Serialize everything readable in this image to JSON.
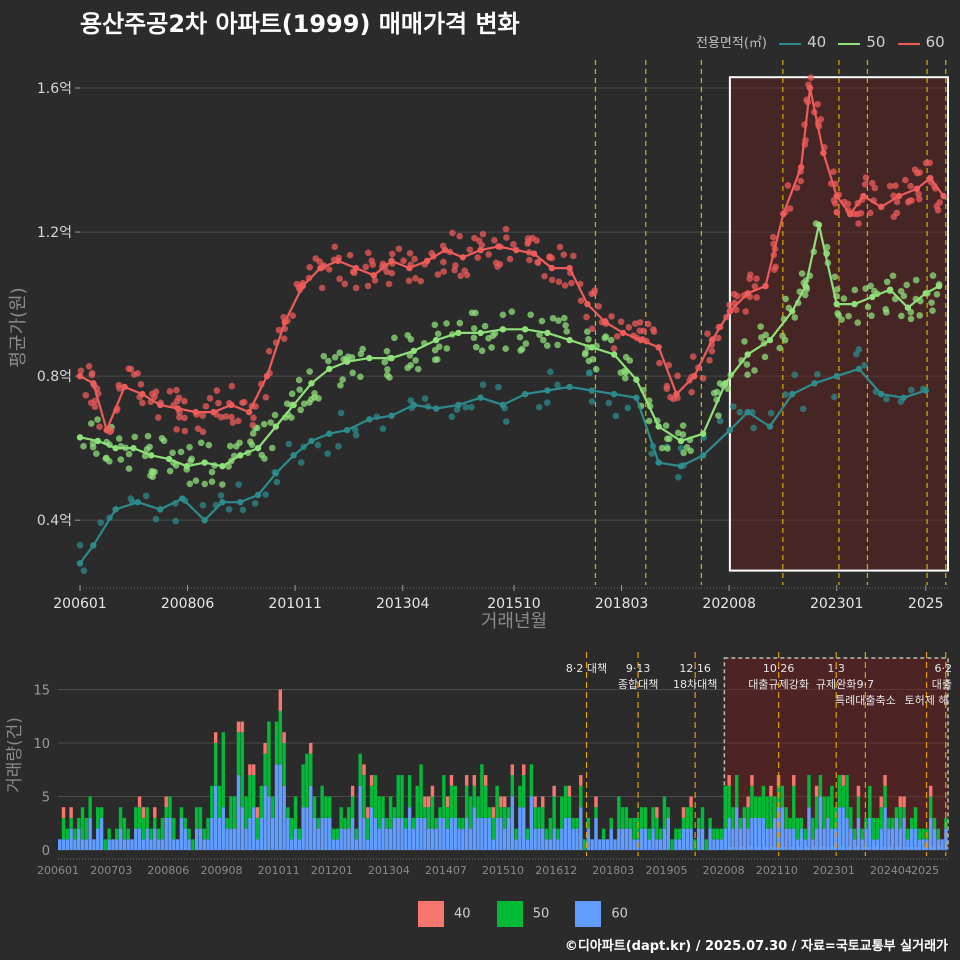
{
  "title": "용산주공2차 아파트(1999) 매매가격 변화",
  "footer": "©디아파트(dapt.kr) / 2025.07.30 / 자료=국토교통부 실거래가",
  "legend": {
    "title": "전용면적(㎡)",
    "items": [
      {
        "label": "40",
        "color": "#2e8b8b"
      },
      {
        "label": "50",
        "color": "#8fe07a"
      },
      {
        "label": "60",
        "color": "#ee5b5b"
      }
    ]
  },
  "volume_legend": [
    {
      "label": "40",
      "color": "#f8766d"
    },
    {
      "label": "50",
      "color": "#00ba38"
    },
    {
      "label": "60",
      "color": "#619cff"
    }
  ],
  "chart_data": [
    {
      "type": "line",
      "title": "용산주공2차 아파트(1999) 매매가격 변화",
      "xlabel": "거래년월",
      "ylabel": "평균가(원)",
      "x_tick_labels": [
        "200601",
        "200806",
        "201011",
        "201304",
        "201510",
        "201803",
        "202008",
        "202301",
        "2025"
      ],
      "y_tick_labels": [
        "0.4억",
        "0.8억",
        "1.2억",
        "1.6억"
      ],
      "y_ticks": [
        0.4,
        0.8,
        1.2,
        1.6
      ],
      "ylim": [
        0.22,
        1.65
      ],
      "x_range": [
        2006.0,
        2025.5
      ],
      "grid": true,
      "legend_position": "top-right",
      "highlight_region": {
        "x": [
          2020.6,
          2025.5
        ],
        "y": [
          0.26,
          1.63
        ]
      },
      "event_lines": [
        2017.58,
        2018.71,
        2019.96,
        2021.79,
        2023.05,
        2023.69,
        2025.03,
        2025.45
      ],
      "series": [
        {
          "name": "40",
          "color": "#2e8b8b",
          "x": [
            2006.0,
            2006.3,
            2006.8,
            2007.3,
            2007.8,
            2008.3,
            2008.8,
            2009.2,
            2009.6,
            2010.0,
            2010.4,
            2010.8,
            2011.2,
            2011.6,
            2012.0,
            2012.5,
            2013.0,
            2013.5,
            2014.0,
            2014.5,
            2015.0,
            2015.5,
            2016.0,
            2016.5,
            2017.0,
            2017.5,
            2018.0,
            2018.5,
            2019.0,
            2019.5,
            2020.0,
            2020.6,
            2021.0,
            2021.5,
            2022.0,
            2022.5,
            2023.0,
            2023.5,
            2024.0,
            2024.5,
            2025.0
          ],
          "values": [
            0.28,
            0.33,
            0.43,
            0.45,
            0.43,
            0.46,
            0.4,
            0.45,
            0.45,
            0.47,
            0.53,
            0.58,
            0.62,
            0.64,
            0.65,
            0.68,
            0.69,
            0.72,
            0.71,
            0.72,
            0.74,
            0.72,
            0.75,
            0.76,
            0.77,
            0.76,
            0.75,
            0.74,
            0.56,
            0.55,
            0.58,
            0.65,
            0.7,
            0.66,
            0.75,
            0.78,
            0.8,
            0.82,
            0.75,
            0.74,
            0.76
          ]
        },
        {
          "name": "50",
          "color": "#8fe07a",
          "x": [
            2006.0,
            2006.4,
            2006.8,
            2007.2,
            2007.6,
            2008.0,
            2008.4,
            2008.8,
            2009.2,
            2009.6,
            2010.0,
            2010.4,
            2010.8,
            2011.2,
            2011.6,
            2012.0,
            2012.5,
            2013.0,
            2013.5,
            2014.0,
            2014.5,
            2015.0,
            2015.5,
            2016.0,
            2016.5,
            2017.0,
            2017.5,
            2018.0,
            2018.5,
            2019.0,
            2019.5,
            2020.0,
            2020.5,
            2021.0,
            2021.5,
            2022.0,
            2022.3,
            2022.6,
            2023.0,
            2023.4,
            2023.8,
            2024.2,
            2024.6,
            2025.0,
            2025.3
          ],
          "values": [
            0.63,
            0.62,
            0.6,
            0.6,
            0.58,
            0.57,
            0.55,
            0.56,
            0.55,
            0.58,
            0.6,
            0.66,
            0.72,
            0.78,
            0.82,
            0.84,
            0.85,
            0.85,
            0.87,
            0.9,
            0.92,
            0.92,
            0.93,
            0.93,
            0.92,
            0.9,
            0.88,
            0.86,
            0.79,
            0.66,
            0.62,
            0.64,
            0.78,
            0.86,
            0.9,
            0.98,
            1.05,
            1.22,
            1.0,
            1.0,
            1.02,
            1.04,
            0.99,
            1.03,
            1.05
          ]
        },
        {
          "name": "60",
          "color": "#ee5b5b",
          "x": [
            2006.0,
            2006.3,
            2006.6,
            2007.0,
            2007.4,
            2007.8,
            2008.2,
            2008.6,
            2009.0,
            2009.4,
            2009.8,
            2010.2,
            2010.6,
            2011.0,
            2011.4,
            2011.8,
            2012.2,
            2012.6,
            2013.0,
            2013.4,
            2013.8,
            2014.2,
            2014.6,
            2015.0,
            2015.4,
            2015.8,
            2016.2,
            2016.6,
            2017.0,
            2017.4,
            2017.8,
            2018.2,
            2018.6,
            2019.0,
            2019.4,
            2019.8,
            2020.2,
            2020.6,
            2021.0,
            2021.4,
            2021.8,
            2022.2,
            2022.4,
            2022.7,
            2023.0,
            2023.3,
            2023.6,
            2024.0,
            2024.4,
            2024.8,
            2025.1,
            2025.4
          ],
          "values": [
            0.8,
            0.78,
            0.65,
            0.77,
            0.75,
            0.72,
            0.71,
            0.7,
            0.7,
            0.72,
            0.7,
            0.8,
            0.95,
            1.05,
            1.1,
            1.12,
            1.1,
            1.08,
            1.12,
            1.1,
            1.12,
            1.15,
            1.13,
            1.15,
            1.16,
            1.15,
            1.14,
            1.1,
            1.1,
            1.0,
            0.95,
            0.92,
            0.9,
            0.88,
            0.75,
            0.8,
            0.9,
            0.98,
            1.03,
            1.05,
            1.25,
            1.38,
            1.6,
            1.42,
            1.3,
            1.25,
            1.3,
            1.27,
            1.3,
            1.32,
            1.35,
            1.3
          ]
        }
      ]
    },
    {
      "type": "bar",
      "stacked": true,
      "xlabel": "",
      "ylabel": "거래량(건)",
      "x_tick_labels": [
        "200601",
        "200703",
        "200806",
        "200908",
        "201011",
        "201201",
        "201304",
        "201407",
        "201510",
        "201612",
        "201803",
        "201905",
        "202008",
        "202110",
        "202301",
        "202404",
        "2025"
      ],
      "y_tick_labels": [
        "0",
        "5",
        "10",
        "15"
      ],
      "y_ticks": [
        0,
        5,
        10,
        15
      ],
      "ylim": [
        0,
        18.5
      ],
      "x_range": [
        2006.0,
        2025.5
      ],
      "highlight_region": {
        "x": [
          2020.6,
          2025.5
        ]
      },
      "event_lines": [
        2017.58,
        2018.71,
        2019.96,
        2021.79,
        2023.05,
        2023.69,
        2025.03,
        2025.45
      ],
      "annotations": [
        {
          "x": 2017.58,
          "level": 0,
          "text": "8·2 대책"
        },
        {
          "x": 2018.71,
          "level": 0,
          "text": "9·13"
        },
        {
          "x": 2018.71,
          "level": 1,
          "text": "종합대책"
        },
        {
          "x": 2019.96,
          "level": 0,
          "text": "12·16"
        },
        {
          "x": 2019.96,
          "level": 1,
          "text": "18차대책"
        },
        {
          "x": 2021.79,
          "level": 0,
          "text": "10·26"
        },
        {
          "x": 2021.79,
          "level": 1,
          "text": "대출규제강화"
        },
        {
          "x": 2023.05,
          "level": 0,
          "text": "1·3"
        },
        {
          "x": 2023.05,
          "level": 1,
          "text": "규제완화"
        },
        {
          "x": 2023.69,
          "level": 1,
          "text": "9·7"
        },
        {
          "x": 2023.69,
          "level": 2,
          "text": "특례대출축소"
        },
        {
          "x": 2025.03,
          "level": 2,
          "text": "토허제 해"
        },
        {
          "x": 2025.45,
          "level": 0,
          "text": "6·2"
        },
        {
          "x": 2025.45,
          "level": 1,
          "text": "대출"
        }
      ],
      "series": [
        {
          "name": "40",
          "color": "#f8766d"
        },
        {
          "name": "50",
          "color": "#00ba38"
        },
        {
          "name": "60",
          "color": "#619cff"
        }
      ]
    }
  ]
}
